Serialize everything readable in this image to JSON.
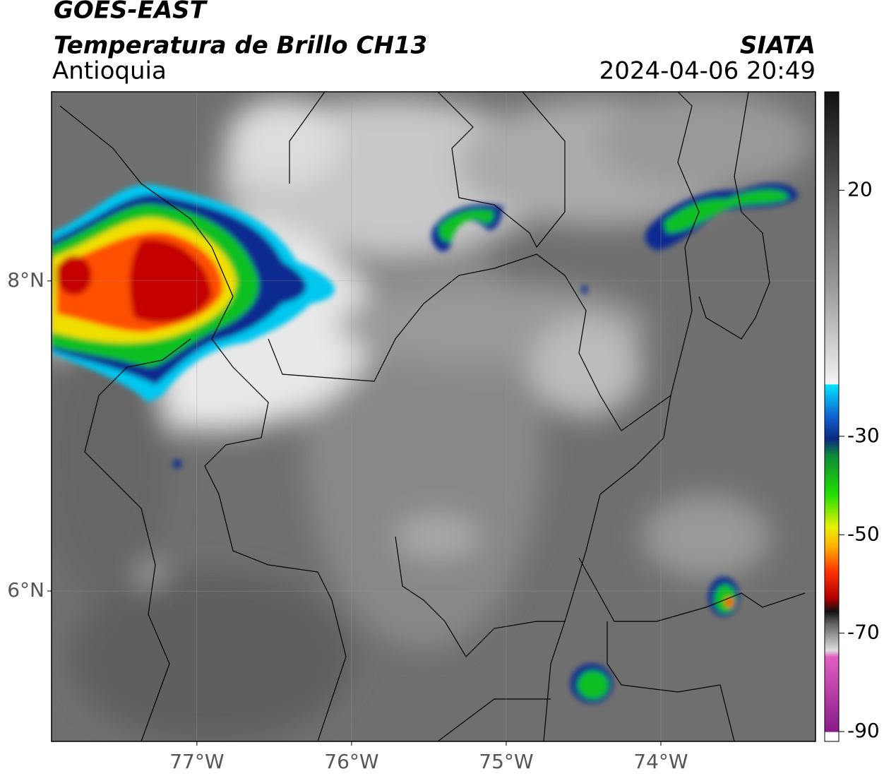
{
  "header": {
    "title": "GOES-EAST",
    "subtitle": "Temperatura de Brillo CH13",
    "region": "Antioquia",
    "source": "SIATA",
    "datetime": "2024-04-06 20:49"
  },
  "map": {
    "xlim": [
      -77.94,
      -73.0
    ],
    "ylim": [
      5.03,
      9.22
    ],
    "xticks": [
      {
        "value": -77,
        "label": "77°W"
      },
      {
        "value": -76,
        "label": "76°W"
      },
      {
        "value": -75,
        "label": "75°W"
      },
      {
        "value": -74,
        "label": "74°W"
      }
    ],
    "yticks": [
      {
        "value": 8,
        "label": "8°N"
      },
      {
        "value": 6,
        "label": "6°N"
      }
    ],
    "grid": true
  },
  "colorbar": {
    "lim": [
      -92,
      40
    ],
    "ticks": [
      20,
      -30,
      -50,
      -70,
      -90
    ]
  }
}
